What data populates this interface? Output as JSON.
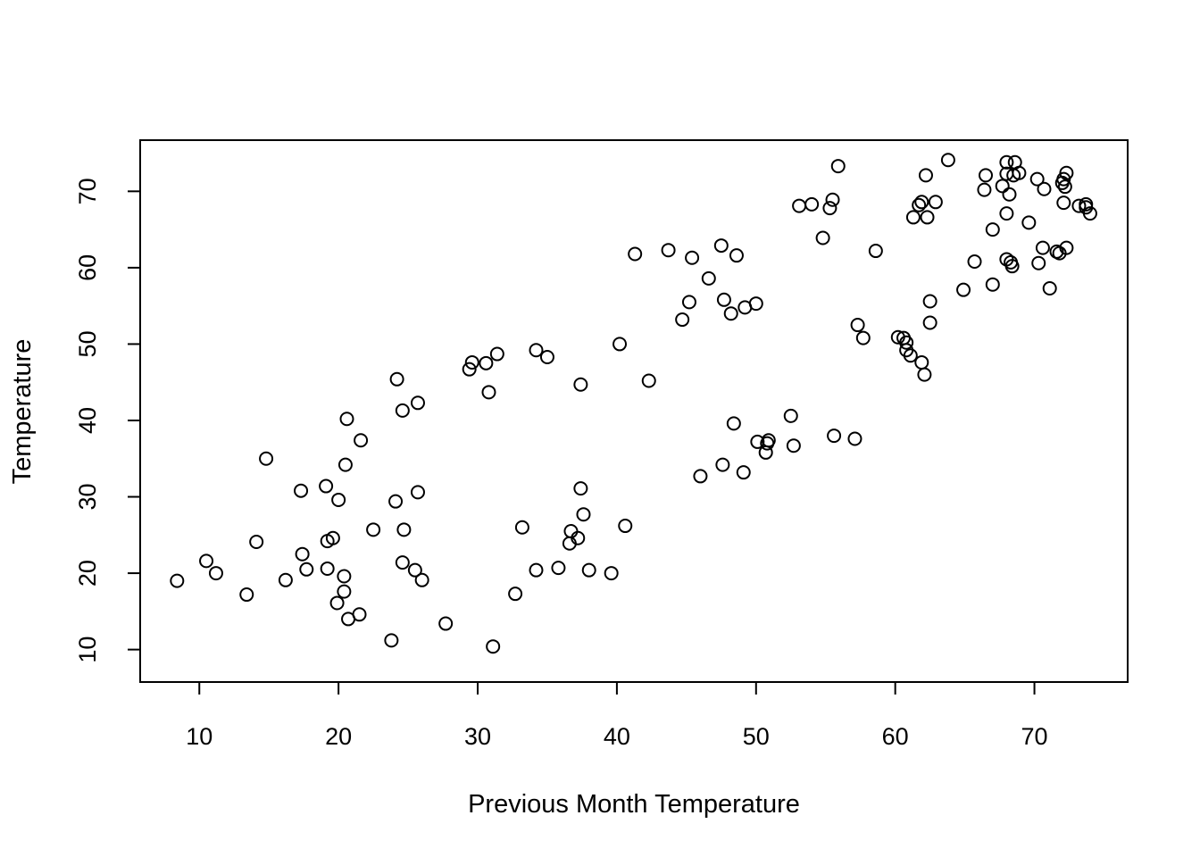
{
  "chart_data": {
    "type": "scatter",
    "title": "",
    "xlabel": "Previous Month Temperature",
    "ylabel": "Temperature",
    "xlim": [
      5.75,
      76.7
    ],
    "ylim": [
      5.75,
      76.7
    ],
    "xticks": [
      "10",
      "20",
      "30",
      "40",
      "50",
      "60",
      "70"
    ],
    "yticks": [
      "10",
      "20",
      "30",
      "40",
      "50",
      "60",
      "70"
    ],
    "grid": false,
    "legend": "none",
    "marker": "open-circle",
    "color": "#000000",
    "points": [
      [
        8.4,
        19.0
      ],
      [
        10.5,
        21.6
      ],
      [
        11.2,
        20.0
      ],
      [
        13.4,
        17.2
      ],
      [
        14.1,
        24.1
      ],
      [
        14.8,
        35.0
      ],
      [
        16.2,
        19.1
      ],
      [
        17.3,
        30.8
      ],
      [
        17.4,
        22.5
      ],
      [
        17.7,
        20.5
      ],
      [
        19.1,
        31.4
      ],
      [
        19.2,
        24.2
      ],
      [
        19.2,
        20.6
      ],
      [
        19.6,
        24.6
      ],
      [
        19.9,
        16.1
      ],
      [
        20.0,
        29.6
      ],
      [
        20.4,
        19.6
      ],
      [
        20.4,
        17.6
      ],
      [
        20.5,
        34.2
      ],
      [
        20.6,
        40.2
      ],
      [
        20.7,
        14.0
      ],
      [
        21.5,
        14.6
      ],
      [
        21.6,
        37.4
      ],
      [
        22.5,
        25.7
      ],
      [
        23.8,
        11.2
      ],
      [
        24.1,
        29.4
      ],
      [
        24.2,
        45.4
      ],
      [
        24.6,
        41.3
      ],
      [
        24.6,
        21.4
      ],
      [
        24.7,
        25.7
      ],
      [
        25.5,
        20.4
      ],
      [
        25.7,
        42.3
      ],
      [
        25.7,
        30.6
      ],
      [
        26.0,
        19.1
      ],
      [
        27.7,
        13.4
      ],
      [
        29.4,
        46.7
      ],
      [
        29.6,
        47.6
      ],
      [
        30.6,
        47.5
      ],
      [
        30.8,
        43.7
      ],
      [
        31.1,
        10.4
      ],
      [
        31.4,
        48.7
      ],
      [
        32.7,
        17.3
      ],
      [
        33.2,
        26.0
      ],
      [
        34.2,
        49.2
      ],
      [
        34.2,
        20.4
      ],
      [
        35.0,
        48.3
      ],
      [
        35.8,
        20.7
      ],
      [
        36.6,
        23.9
      ],
      [
        36.7,
        25.5
      ],
      [
        37.2,
        24.6
      ],
      [
        37.4,
        44.7
      ],
      [
        37.4,
        31.1
      ],
      [
        37.6,
        27.7
      ],
      [
        38.0,
        20.4
      ],
      [
        39.6,
        20.0
      ],
      [
        40.2,
        50.0
      ],
      [
        40.6,
        26.2
      ],
      [
        41.3,
        61.8
      ],
      [
        42.3,
        45.2
      ],
      [
        43.7,
        62.3
      ],
      [
        44.7,
        53.2
      ],
      [
        45.2,
        55.5
      ],
      [
        45.4,
        61.3
      ],
      [
        46.0,
        32.7
      ],
      [
        46.6,
        58.6
      ],
      [
        47.5,
        62.9
      ],
      [
        47.6,
        34.2
      ],
      [
        47.7,
        55.8
      ],
      [
        48.2,
        54.0
      ],
      [
        48.4,
        39.6
      ],
      [
        48.6,
        61.6
      ],
      [
        49.1,
        33.2
      ],
      [
        49.2,
        54.8
      ],
      [
        50.0,
        55.3
      ],
      [
        50.1,
        37.2
      ],
      [
        50.7,
        35.8
      ],
      [
        50.8,
        37.0
      ],
      [
        50.9,
        37.4
      ],
      [
        52.5,
        40.6
      ],
      [
        52.7,
        36.7
      ],
      [
        53.1,
        68.1
      ],
      [
        54.0,
        68.3
      ],
      [
        54.8,
        63.9
      ],
      [
        55.3,
        67.8
      ],
      [
        55.5,
        68.9
      ],
      [
        55.6,
        38.0
      ],
      [
        55.9,
        73.3
      ],
      [
        57.1,
        37.6
      ],
      [
        57.3,
        52.5
      ],
      [
        57.7,
        50.8
      ],
      [
        58.6,
        62.2
      ],
      [
        60.2,
        50.9
      ],
      [
        60.6,
        50.8
      ],
      [
        60.8,
        50.2
      ],
      [
        60.8,
        49.2
      ],
      [
        61.1,
        48.5
      ],
      [
        61.3,
        66.6
      ],
      [
        61.7,
        68.2
      ],
      [
        61.9,
        68.6
      ],
      [
        61.9,
        47.6
      ],
      [
        62.1,
        46.0
      ],
      [
        62.2,
        72.1
      ],
      [
        62.3,
        66.6
      ],
      [
        62.5,
        55.6
      ],
      [
        62.5,
        52.8
      ],
      [
        62.9,
        68.6
      ],
      [
        63.8,
        74.1
      ],
      [
        64.9,
        57.1
      ],
      [
        65.7,
        60.8
      ],
      [
        66.4,
        70.2
      ],
      [
        66.5,
        72.1
      ],
      [
        67.0,
        65.0
      ],
      [
        67.0,
        57.8
      ],
      [
        67.7,
        70.7
      ],
      [
        68.0,
        73.8
      ],
      [
        68.0,
        72.3
      ],
      [
        68.0,
        67.1
      ],
      [
        68.0,
        61.1
      ],
      [
        68.2,
        69.6
      ],
      [
        68.3,
        60.7
      ],
      [
        68.4,
        60.2
      ],
      [
        68.5,
        72.1
      ],
      [
        68.6,
        73.8
      ],
      [
        68.9,
        72.4
      ],
      [
        69.6,
        65.9
      ],
      [
        70.2,
        71.6
      ],
      [
        70.3,
        60.6
      ],
      [
        70.6,
        62.6
      ],
      [
        70.7,
        70.3
      ],
      [
        71.1,
        57.3
      ],
      [
        71.6,
        62.1
      ],
      [
        71.8,
        61.9
      ],
      [
        72.0,
        71.1
      ],
      [
        72.1,
        71.6
      ],
      [
        72.1,
        68.5
      ],
      [
        72.2,
        70.6
      ],
      [
        72.3,
        72.4
      ],
      [
        72.3,
        62.6
      ],
      [
        73.2,
        68.1
      ],
      [
        73.7,
        68.3
      ],
      [
        73.7,
        67.9
      ],
      [
        74.0,
        67.1
      ]
    ]
  }
}
